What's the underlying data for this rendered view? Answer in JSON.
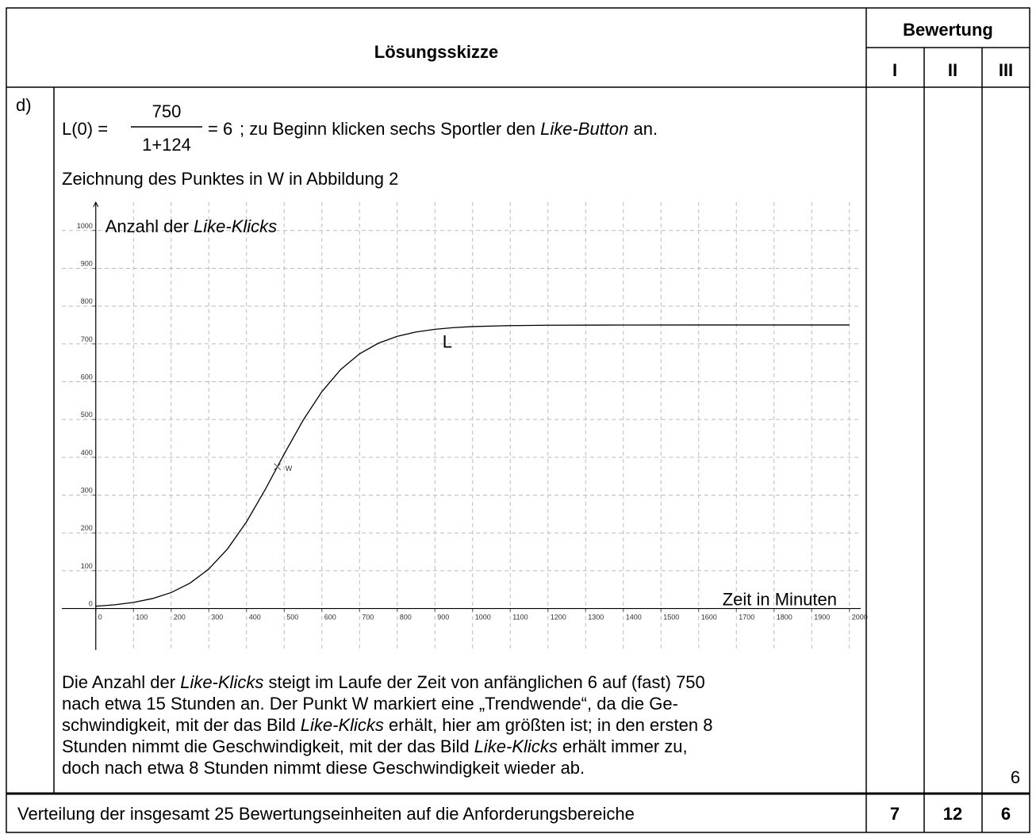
{
  "header": {
    "title": "Lösungsskizze",
    "rating": "Bewertung",
    "levels": [
      "I",
      "II",
      "III"
    ]
  },
  "task": {
    "label": "d)",
    "formula": {
      "lhs": "L(0) =",
      "numerator": "750",
      "denominator": "1+124",
      "result": "= 6"
    },
    "formula_text": [
      {
        "text": "; zu Beginn klicken sechs Sportler den "
      },
      {
        "text": "Like-Button",
        "italic": true
      },
      {
        "text": " an."
      }
    ],
    "instruction": "Zeichnung des Punktes in W in Abbildung 2",
    "paragraph": [
      [
        {
          "text": "Die Anzahl der "
        },
        {
          "text": "Like-Klicks",
          "italic": true
        },
        {
          "text": " steigt im Laufe der Zeit von anfänglichen 6 auf (fast) 750"
        }
      ],
      [
        {
          "text": "nach etwa 15 Stunden an. Der Punkt W markiert eine „Trendwende“, da die Ge-"
        }
      ],
      [
        {
          "text": "schwindigkeit, mit der das Bild "
        },
        {
          "text": "Like-Klicks",
          "italic": true
        },
        {
          "text": " erhält, hier am größten ist; in den ersten 8"
        }
      ],
      [
        {
          "text": "Stunden nimmt die Geschwindigkeit, mit der das Bild "
        },
        {
          "text": "Like-Klicks",
          "italic": true
        },
        {
          "text": " erhält immer zu,"
        }
      ],
      [
        {
          "text": "doch nach etwa 8 Stunden nimmt diese Geschwindigkeit wieder ab."
        }
      ]
    ],
    "score_III": "6"
  },
  "chart_data": {
    "type": "line",
    "y_label": [
      {
        "text": "Anzahl der "
      },
      {
        "text": "Like-Klicks",
        "italic": true
      }
    ],
    "x_label": "Zeit in Minuten",
    "x": [
      0,
      50,
      100,
      150,
      200,
      250,
      300,
      350,
      400,
      450,
      500,
      550,
      600,
      650,
      700,
      750,
      800,
      850,
      900,
      950,
      1000,
      1100,
      1200,
      1400,
      1600,
      2000
    ],
    "series": [
      {
        "name": "L",
        "color": "#000000",
        "values": [
          6.0,
          9.8,
          16.1,
          26.2,
          42.2,
          67.1,
          104.6,
          158.1,
          229.3,
          315.4,
          408.6,
          497.7,
          573.6,
          632.2,
          673.8,
          701.9,
          720.0,
          731.6,
          738.7,
          743.1,
          745.8,
          748.4,
          749.4,
          749.9,
          750,
          750
        ]
      }
    ],
    "curve_label": {
      "text": "L",
      "x": 920,
      "y": 690
    },
    "point": {
      "label": "W",
      "x": 482,
      "y": 375
    },
    "xlim": [
      -90,
      2030
    ],
    "ylim": [
      -110,
      1075
    ],
    "xticks": [
      0,
      100,
      200,
      300,
      400,
      500,
      600,
      700,
      800,
      900,
      1000,
      1100,
      1200,
      1300,
      1400,
      1500,
      1600,
      1700,
      1800,
      1900,
      2000
    ],
    "yticks": [
      0,
      100,
      200,
      300,
      400,
      500,
      600,
      700,
      800,
      900,
      1000
    ],
    "grid": true
  },
  "footer": {
    "text": "Verteilung der insgesamt 25 Bewertungseinheiten auf die Anforderungsbereiche",
    "scores": [
      "7",
      "12",
      "6"
    ]
  }
}
